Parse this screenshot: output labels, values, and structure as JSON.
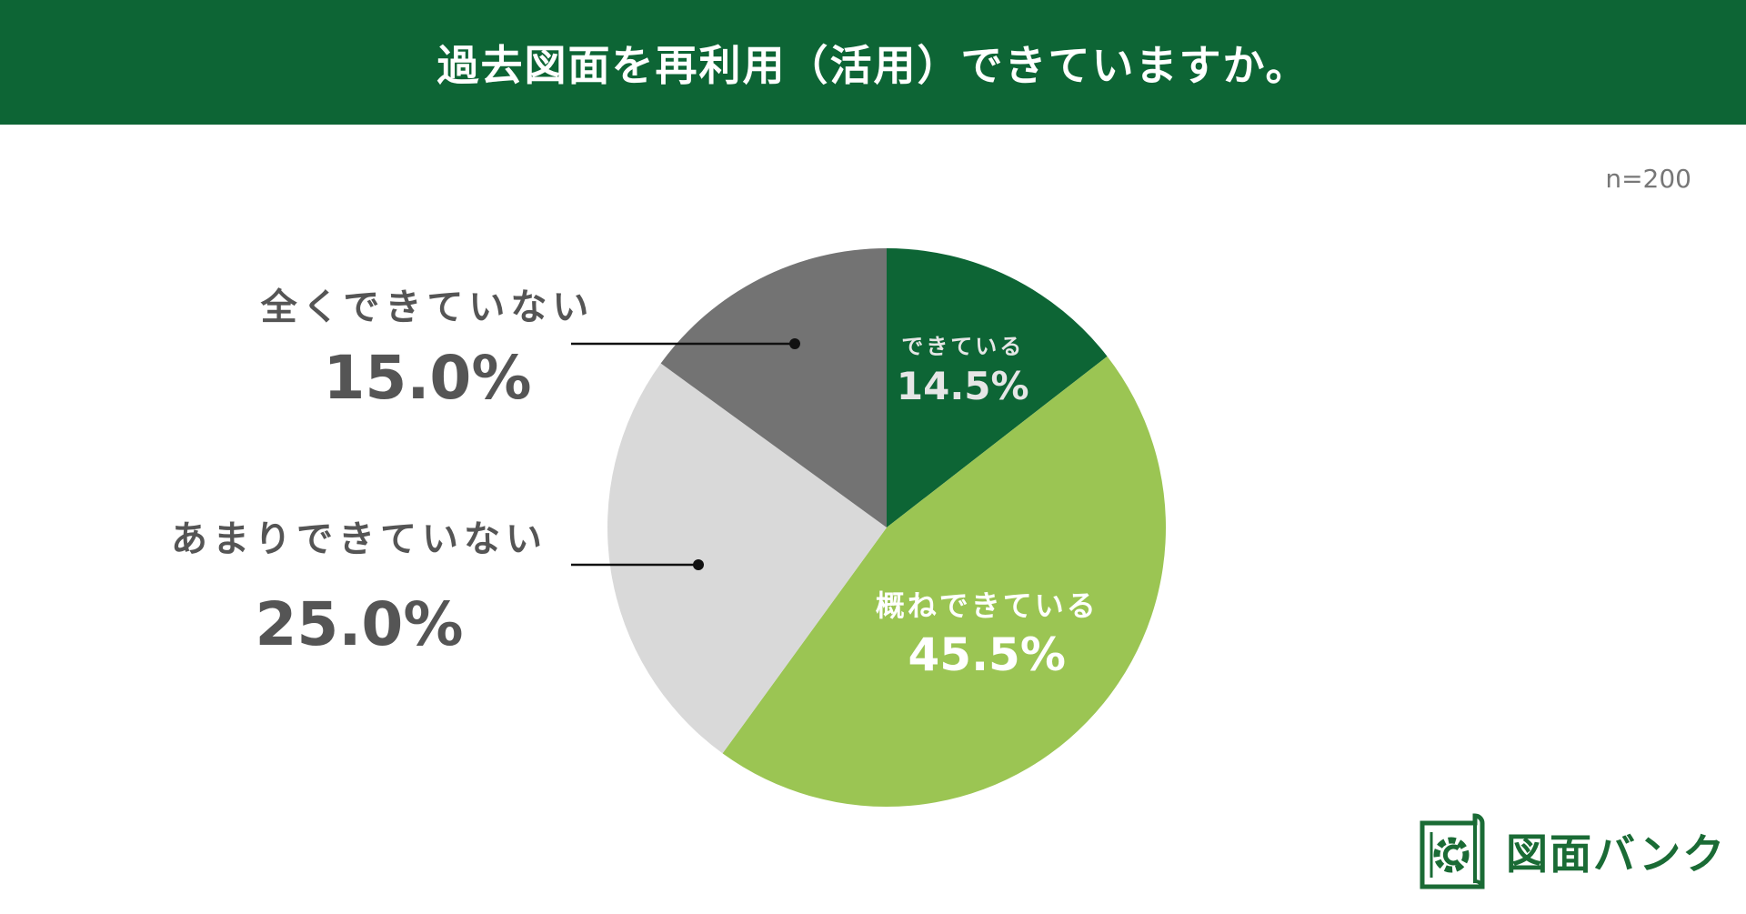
{
  "header": {
    "title": "過去図面を再利用（活用）できていますか。"
  },
  "sample_size": "n=200",
  "chart_data": {
    "type": "pie",
    "title": "過去図面を再利用（活用）できていますか。",
    "start": "top",
    "direction": "clockwise",
    "slices": [
      {
        "label": "できている",
        "value": 14.5,
        "display": "14.5%",
        "color": "#0d6535",
        "text_color": "#e6e6e6"
      },
      {
        "label": "概ねできている",
        "value": 45.5,
        "display": "45.5%",
        "color": "#9bc553",
        "text_color": "#ffffff"
      },
      {
        "label": "あまりできていない",
        "value": 25.0,
        "display": "25.0%",
        "color": "#d9d9d9",
        "text_color": "#555555"
      },
      {
        "label": "全くできていない",
        "value": 15.0,
        "display": "15.0%",
        "color": "#737373",
        "text_color": "#555555"
      }
    ]
  },
  "logo": {
    "text": "図面バンク",
    "color": "#1a6b35"
  }
}
